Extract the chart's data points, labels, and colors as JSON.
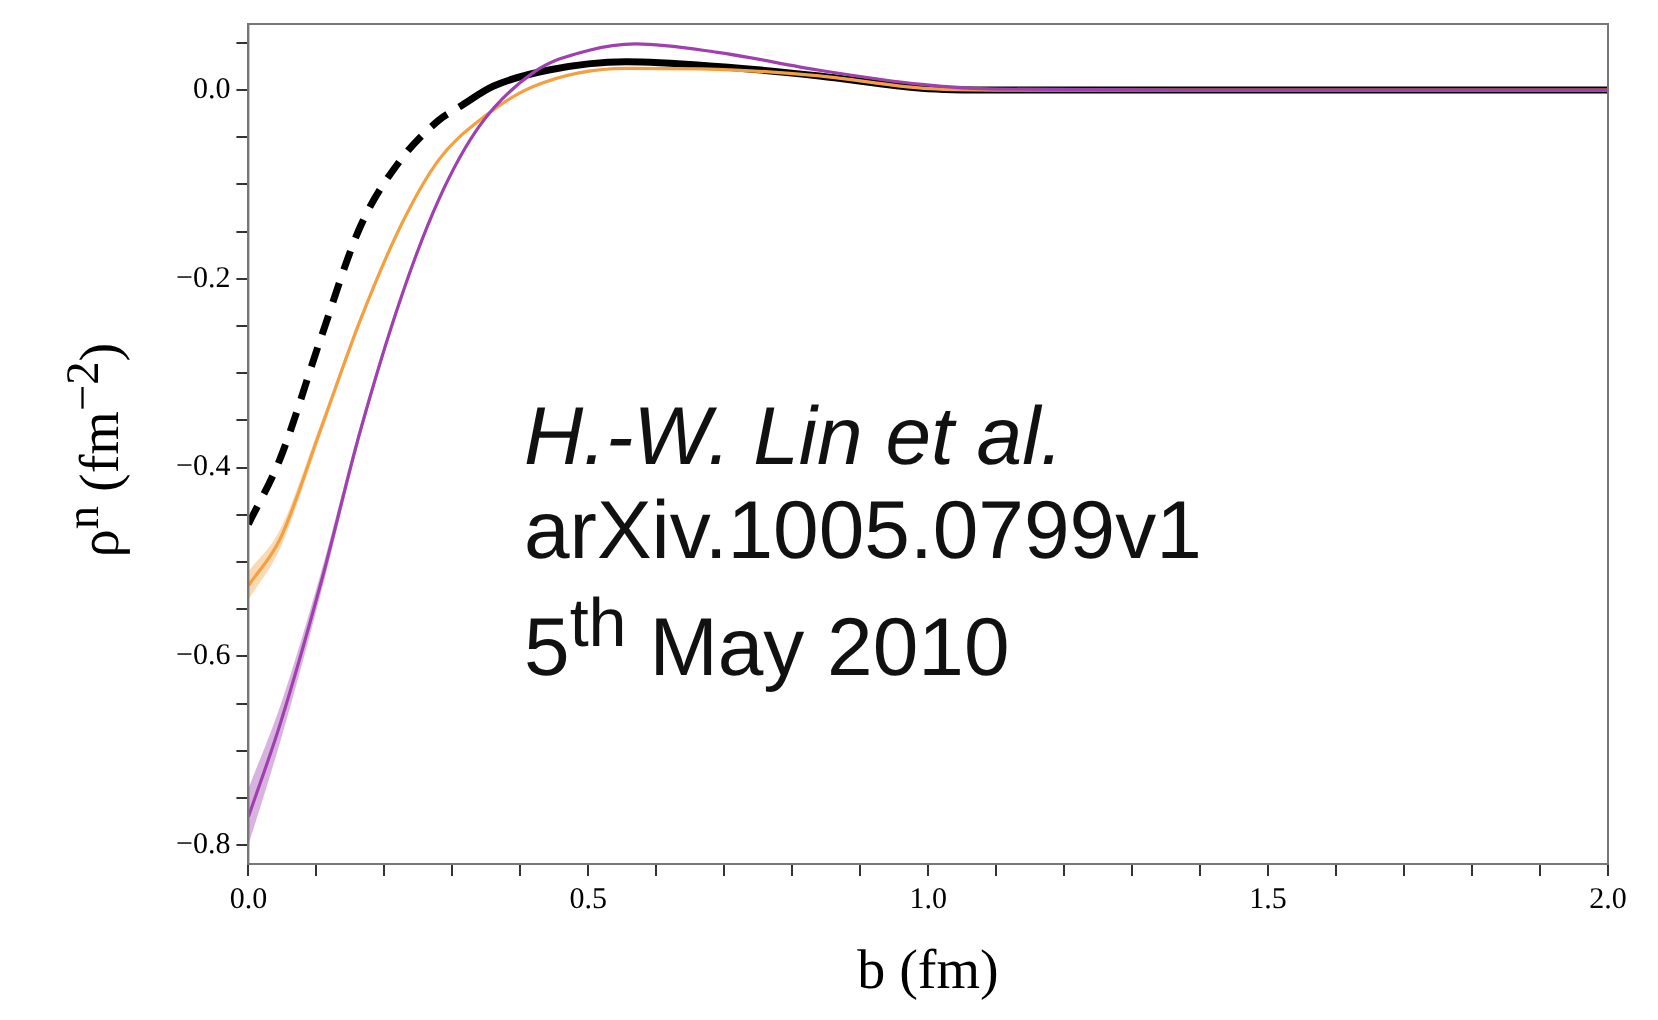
{
  "chart_data": {
    "type": "line",
    "xlabel": "b (fm)",
    "ylabel": "ρ$^{n}$ (fm$^{−2}$)",
    "annotations": [
      "H.-W. Lin et al.",
      "arXiv.1005.0799v1",
      "5$^{th}$ May 2010"
    ],
    "xlim": [
      0,
      2
    ],
    "ylim": [
      -0.82,
      0.07
    ],
    "xticks": [
      {
        "value": 0,
        "label": "0.0"
      },
      {
        "value": 0.1,
        "label": null
      },
      {
        "value": 0.2,
        "label": null
      },
      {
        "value": 0.3,
        "label": null
      },
      {
        "value": 0.4,
        "label": null
      },
      {
        "value": 0.5,
        "label": "0.5"
      },
      {
        "value": 0.6,
        "label": null
      },
      {
        "value": 0.7,
        "label": null
      },
      {
        "value": 0.8,
        "label": null
      },
      {
        "value": 0.9,
        "label": null
      },
      {
        "value": 1,
        "label": "1.0"
      },
      {
        "value": 1.1,
        "label": null
      },
      {
        "value": 1.2,
        "label": null
      },
      {
        "value": 1.3,
        "label": null
      },
      {
        "value": 1.4,
        "label": null
      },
      {
        "value": 1.5,
        "label": "1.5"
      },
      {
        "value": 1.6,
        "label": null
      },
      {
        "value": 1.7,
        "label": null
      },
      {
        "value": 1.8,
        "label": null
      },
      {
        "value": 1.9,
        "label": null
      },
      {
        "value": 2,
        "label": "2.0"
      }
    ],
    "yticks": [
      {
        "value": -0.8,
        "label": "−0.8"
      },
      {
        "value": -0.75,
        "label": null
      },
      {
        "value": -0.7,
        "label": null
      },
      {
        "value": -0.65,
        "label": null
      },
      {
        "value": -0.6,
        "label": "−0.6"
      },
      {
        "value": -0.55,
        "label": null
      },
      {
        "value": -0.5,
        "label": null
      },
      {
        "value": -0.45,
        "label": null
      },
      {
        "value": -0.4,
        "label": "−0.4"
      },
      {
        "value": -0.35,
        "label": null
      },
      {
        "value": -0.3,
        "label": null
      },
      {
        "value": -0.25,
        "label": null
      },
      {
        "value": -0.2,
        "label": "−0.2"
      },
      {
        "value": -0.15,
        "label": null
      },
      {
        "value": -0.1,
        "label": null
      },
      {
        "value": -0.05,
        "label": null
      },
      {
        "value": 0,
        "label": "0.0"
      },
      {
        "value": 0.05,
        "label": null
      }
    ],
    "grid": false,
    "legend": false,
    "marker": "none",
    "series": [
      {
        "color": "#a040b0",
        "x": [
          0,
          0.047,
          0.106,
          0.165,
          0.224,
          0.28,
          0.34,
          0.42,
          0.5,
          0.57,
          0.69,
          0.84,
          0.99,
          1.1,
          1.5,
          2
        ],
        "values": [
          -0.77,
          -0.671,
          -0.524,
          -0.36,
          -0.221,
          -0.116,
          -0.038,
          0.019,
          0.042,
          0.049,
          0.04,
          0.021,
          0.006,
          0.001,
          0,
          0
        ],
        "lower": [
          -0.8,
          -0.69,
          -0.535,
          -0.366,
          -0.225,
          -0.119,
          -0.04,
          0.018,
          0.041,
          0.048,
          0.039,
          0.02,
          0.005,
          0,
          0,
          0
        ],
        "upper": [
          -0.74,
          -0.652,
          -0.513,
          -0.354,
          -0.217,
          -0.113,
          -0.036,
          0.02,
          0.043,
          0.05,
          0.041,
          0.022,
          0.007,
          0.002,
          0,
          0
        ]
      },
      {
        "color": "#f5a040",
        "x": [
          0,
          0.047,
          0.106,
          0.165,
          0.224,
          0.28,
          0.34,
          0.42,
          0.556,
          0.69,
          0.84,
          0.99,
          1.1,
          1.5,
          2
        ],
        "values": [
          -0.525,
          -0.475,
          -0.36,
          -0.243,
          -0.144,
          -0.074,
          -0.032,
          0.004,
          0.023,
          0.022,
          0.015,
          0.002,
          0,
          0,
          0
        ],
        "lower": [
          -0.54,
          -0.485,
          -0.366,
          -0.247,
          -0.147,
          -0.076,
          -0.033,
          0.003,
          0.022,
          0.021,
          0.014,
          0.001,
          0,
          0,
          0
        ],
        "upper": [
          -0.51,
          -0.465,
          -0.354,
          -0.239,
          -0.141,
          -0.072,
          -0.031,
          0.005,
          0.024,
          0.023,
          0.016,
          0.003,
          0,
          0,
          0
        ]
      },
      {
        "color": "#000000",
        "line_style": "dashed",
        "x": [
          0,
          0.047,
          0.106,
          0.165,
          0.224,
          0.28,
          0.31
        ],
        "values": [
          -0.46,
          -0.39,
          -0.264,
          -0.144,
          -0.074,
          -0.032,
          -0.018
        ]
      },
      {
        "color": "#000000",
        "line_style": "solid",
        "x": [
          0.31,
          0.36,
          0.44,
          0.556,
          0.69,
          0.84,
          0.99,
          1.1,
          1.5,
          2
        ],
        "values": [
          -0.018,
          0.004,
          0.021,
          0.03,
          0.025,
          0.015,
          0.002,
          0,
          0,
          0
        ]
      }
    ]
  }
}
